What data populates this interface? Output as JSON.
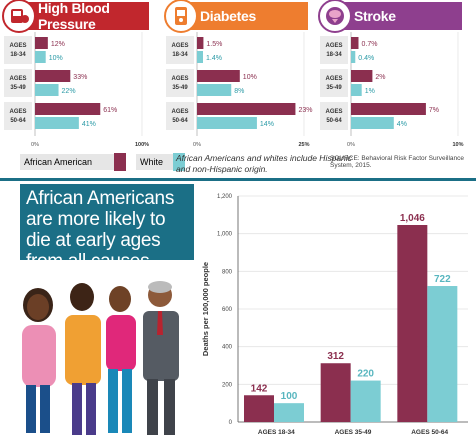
{
  "colors": {
    "african_american": "#8b2f4f",
    "white": "#7ccdd3",
    "bp": "#c1272d",
    "diabetes": "#ee7d2f",
    "stroke": "#8e3f8e",
    "headline_bg": "#1b6f86"
  },
  "top_panels": {
    "blood_pressure": {
      "title": "High Blood Pressure",
      "icon": "blood-pressure-icon"
    },
    "diabetes": {
      "title": "Diabetes",
      "icon": "glucose-meter-icon"
    },
    "stroke": {
      "title": "Stroke",
      "icon": "brain-icon"
    }
  },
  "legend": {
    "african_american": "African American",
    "white": "White"
  },
  "note": "African Americans and whites include Hispanic and non-Hispanic origin.",
  "source": "SOURCE: Behavioral Risk Factor Surveillance System, 2015.",
  "headline": "African Americans are more likely to die at early ages from all causes.",
  "chart_data": [
    {
      "type": "bar",
      "title": "High Blood Pressure",
      "categories": [
        "AGES 18-34",
        "AGES 35-49",
        "AGES 50-64"
      ],
      "series": [
        {
          "name": "African American",
          "values": [
            12,
            33,
            61
          ],
          "labels": [
            "12%",
            "33%",
            "61%"
          ]
        },
        {
          "name": "White",
          "values": [
            10,
            22,
            41
          ],
          "labels": [
            "10%",
            "22%",
            "41%"
          ]
        }
      ],
      "xlim": [
        0,
        100
      ],
      "xticks": [
        "0%",
        "100%"
      ]
    },
    {
      "type": "bar",
      "title": "Diabetes",
      "categories": [
        "AGES 18-34",
        "AGES 35-49",
        "AGES 50-64"
      ],
      "series": [
        {
          "name": "African American",
          "values": [
            1.5,
            10,
            23
          ],
          "labels": [
            "1.5%",
            "10%",
            "23%"
          ]
        },
        {
          "name": "White",
          "values": [
            1.4,
            8,
            14
          ],
          "labels": [
            "1.4%",
            "8%",
            "14%"
          ]
        }
      ],
      "xlim": [
        0,
        25
      ],
      "xticks": [
        "0%",
        "25%"
      ]
    },
    {
      "type": "bar",
      "title": "Stroke",
      "categories": [
        "AGES 18-34",
        "AGES 35-49",
        "AGES 50-64"
      ],
      "series": [
        {
          "name": "African American",
          "values": [
            0.7,
            2,
            7
          ],
          "labels": [
            "0.7%",
            "2%",
            "7%"
          ]
        },
        {
          "name": "White",
          "values": [
            0.4,
            1,
            4
          ],
          "labels": [
            "0.4%",
            "1%",
            "4%"
          ]
        }
      ],
      "xlim": [
        0,
        10
      ],
      "xticks": [
        "0%",
        "10%"
      ]
    },
    {
      "type": "bar",
      "categories": [
        "AGES 18-34",
        "AGES 35-49",
        "AGES 50-64"
      ],
      "series": [
        {
          "name": "African American",
          "values": [
            142,
            312,
            1046
          ],
          "labels": [
            "142",
            "312",
            "1,046"
          ]
        },
        {
          "name": "White",
          "values": [
            100,
            220,
            722
          ],
          "labels": [
            "100",
            "220",
            "722"
          ]
        }
      ],
      "ylabel": "Deaths per 100,000 people",
      "ylim": [
        0,
        1200
      ],
      "yticks": [
        "0",
        "200",
        "400",
        "600",
        "800",
        "1,000",
        "1,200"
      ]
    }
  ]
}
